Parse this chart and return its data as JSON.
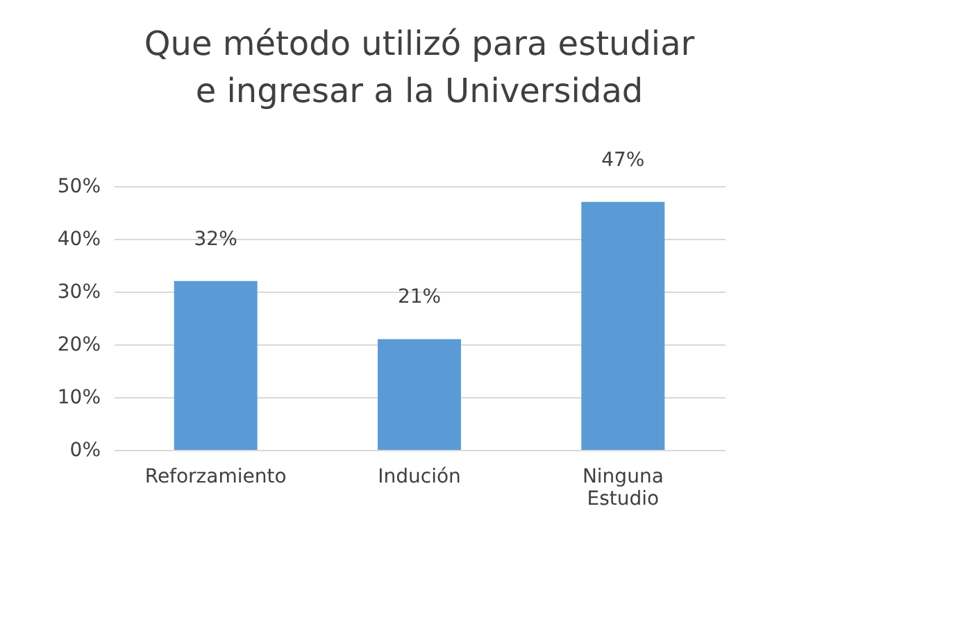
{
  "chart_data": {
    "type": "bar",
    "title": "Que método utilizó para estudiar e ingresar a la Universidad",
    "categories": [
      "Reforzamiento",
      "Indución",
      "Ninguna Estudio"
    ],
    "values": [
      32,
      21,
      47
    ],
    "color": "#5b9bd5",
    "value_labels": [
      "32%",
      "21%",
      "47%"
    ],
    "ylim": [
      0,
      50
    ],
    "yticks": [
      {
        "value": 0,
        "label": "0%"
      },
      {
        "value": 10,
        "label": "10%"
      },
      {
        "value": 20,
        "label": "20%"
      },
      {
        "value": 30,
        "label": "30%"
      },
      {
        "value": 40,
        "label": "40%"
      },
      {
        "value": 50,
        "label": "50%"
      }
    ],
    "grid": "y"
  }
}
